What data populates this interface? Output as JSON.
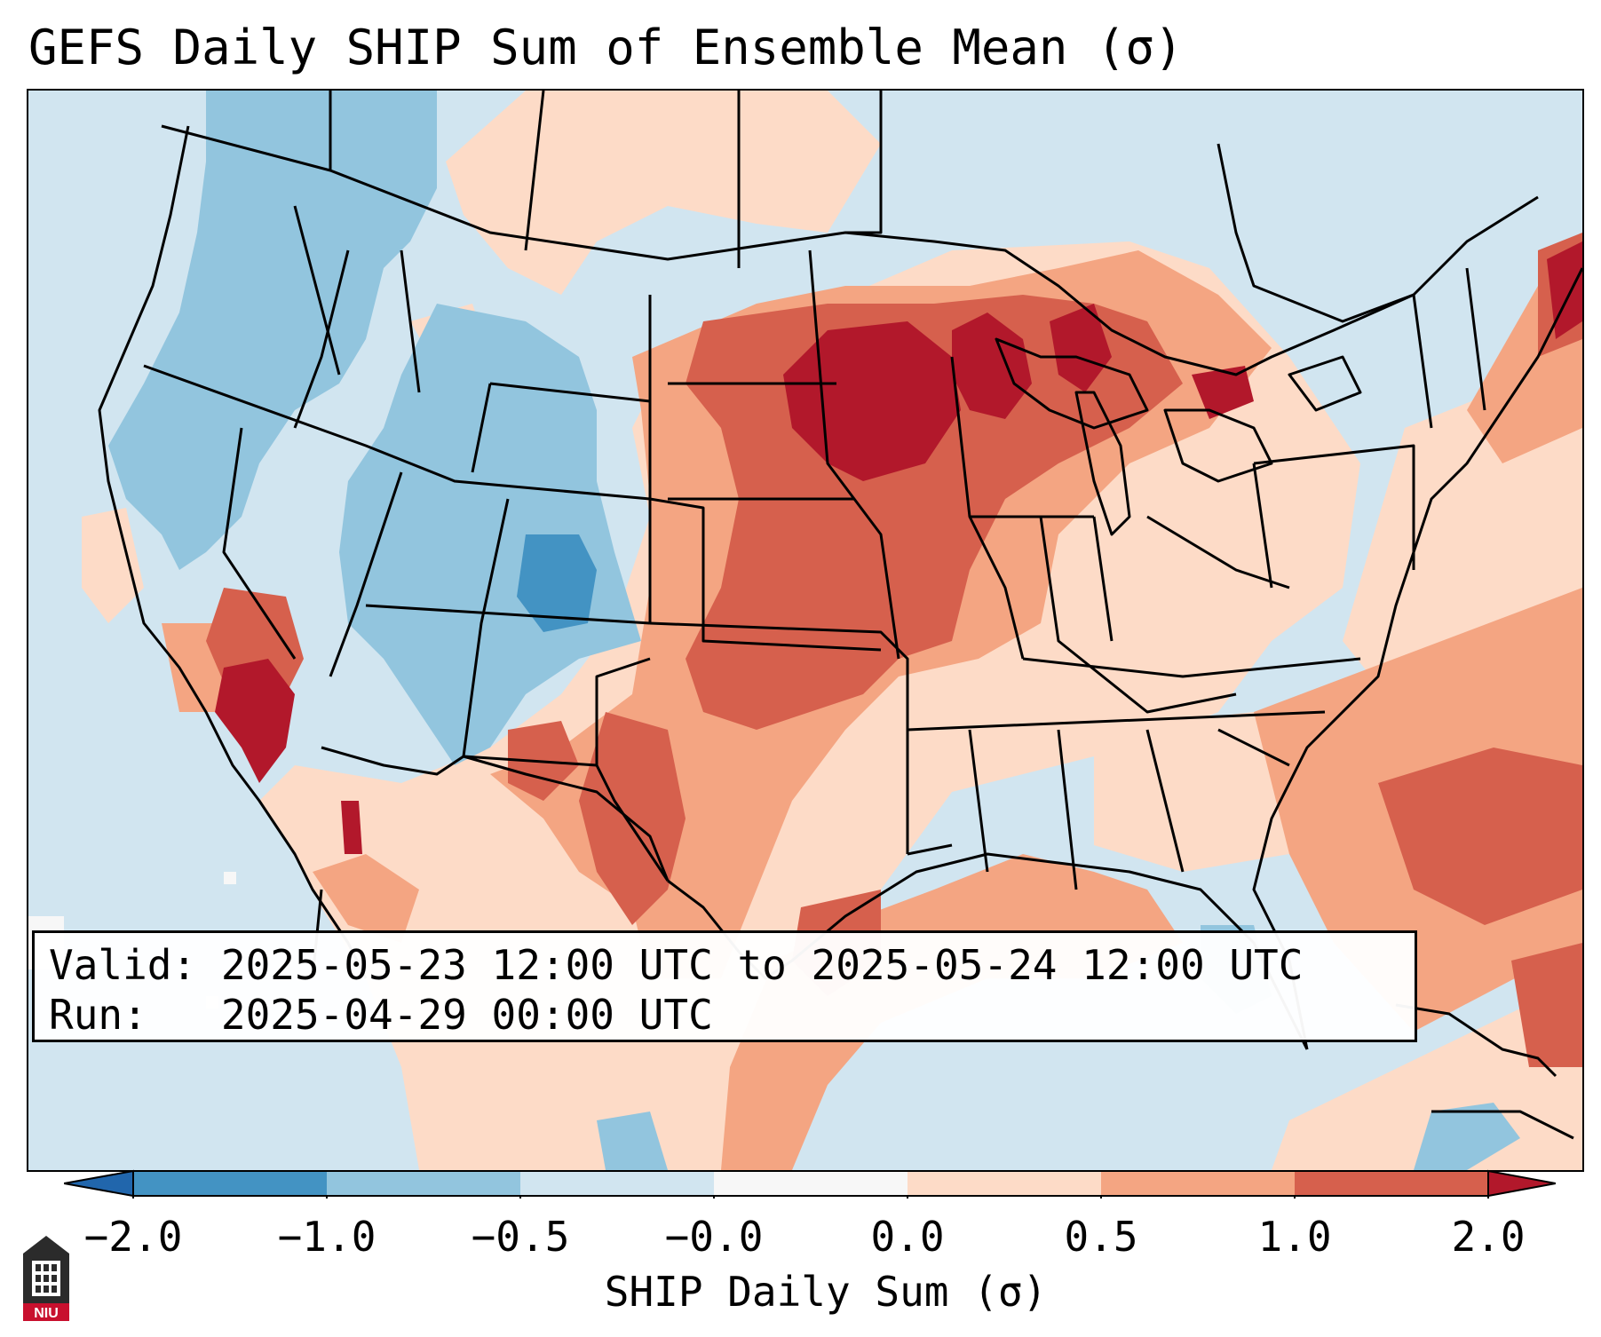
{
  "title": "GEFS Daily SHIP Sum of Ensemble Mean (σ)",
  "info": {
    "valid_label": "Valid:",
    "valid_value": "2025-05-23 12:00 UTC to 2025-05-24 12:00 UTC",
    "run_label": "Run:",
    "run_value": "2025-04-29 00:00 UTC"
  },
  "colorbar": {
    "label": "SHIP Daily Sum (σ)",
    "ticks": [
      "−2.0",
      "−1.0",
      "−0.5",
      "−0.0",
      "0.0",
      "0.5",
      "1.0",
      "2.0"
    ],
    "colors": [
      "#4393c3",
      "#92c5de",
      "#d1e5f0",
      "#f7f7f7",
      "#fddbc7",
      "#f4a582",
      "#d6604d"
    ],
    "under_color": "#2166ac",
    "over_color": "#b2182b",
    "extend": "both"
  },
  "map": {
    "region": "Contiguous United States",
    "background_level": "#d1e5f0",
    "levels": {
      "strong_neg": "#4393c3",
      "neg": "#92c5de",
      "weak_neg": "#d1e5f0",
      "weak_pos": "#fddbc7",
      "pos": "#f4a582",
      "strong_pos": "#d6604d",
      "max_pos": "#b2182b"
    }
  },
  "logo": {
    "text": "NIU",
    "icon": "university-tower-logo"
  }
}
